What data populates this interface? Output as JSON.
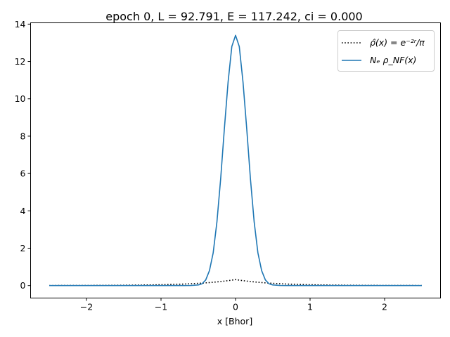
{
  "chart_data": {
    "type": "line",
    "title": "epoch 0, L = 92.791, E = 117.242, ci = 0.000",
    "xlabel": "x [Bhor]",
    "ylabel": "",
    "xlim": [
      -2.75,
      2.75
    ],
    "ylim": [
      -0.67,
      14.07
    ],
    "x_ticks": [
      -2,
      -1,
      0,
      1,
      2
    ],
    "x_tick_labels": [
      "−2",
      "−1",
      "0",
      "1",
      "2"
    ],
    "y_ticks": [
      0,
      2,
      4,
      6,
      8,
      10,
      12,
      14
    ],
    "y_tick_labels": [
      "0",
      "2",
      "4",
      "6",
      "8",
      "10",
      "12",
      "14"
    ],
    "grid": false,
    "legend_position": "top-right",
    "series": [
      {
        "name": "ρ̂(x) = e⁻²ʳ/π",
        "style": "dotted",
        "color": "#000000",
        "x": [
          -2.5,
          -2.25,
          -2.0,
          -1.75,
          -1.5,
          -1.25,
          -1.0,
          -0.9,
          -0.8,
          -0.7,
          -0.6,
          -0.5,
          -0.4,
          -0.3,
          -0.2,
          -0.1,
          0.0,
          0.1,
          0.2,
          0.3,
          0.4,
          0.5,
          0.6,
          0.7,
          0.8,
          0.9,
          1.0,
          1.25,
          1.5,
          1.75,
          2.0,
          2.25,
          2.5
        ],
        "y": [
          0.002,
          0.004,
          0.006,
          0.01,
          0.016,
          0.026,
          0.043,
          0.053,
          0.064,
          0.078,
          0.096,
          0.117,
          0.143,
          0.175,
          0.213,
          0.261,
          0.318,
          0.261,
          0.213,
          0.175,
          0.143,
          0.117,
          0.096,
          0.078,
          0.064,
          0.053,
          0.043,
          0.026,
          0.016,
          0.01,
          0.006,
          0.004,
          0.002
        ]
      },
      {
        "name": "Nₑ ρ_NF(x)",
        "style": "solid",
        "color": "#1f77b4",
        "x": [
          -2.5,
          -1.5,
          -1.0,
          -0.7,
          -0.6,
          -0.5,
          -0.45,
          -0.4,
          -0.35,
          -0.3,
          -0.25,
          -0.2,
          -0.15,
          -0.1,
          -0.05,
          0.0,
          0.05,
          0.1,
          0.15,
          0.2,
          0.25,
          0.3,
          0.35,
          0.4,
          0.45,
          0.5,
          0.6,
          0.7,
          1.0,
          1.5,
          2.5
        ],
        "y": [
          0.0,
          0.0,
          0.0,
          0.0,
          0.003,
          0.03,
          0.09,
          0.3,
          0.8,
          1.75,
          3.4,
          5.7,
          8.4,
          10.9,
          12.8,
          13.4,
          12.8,
          10.9,
          8.4,
          5.7,
          3.4,
          1.75,
          0.8,
          0.3,
          0.09,
          0.03,
          0.003,
          0.0,
          0.0,
          0.0,
          0.0
        ]
      }
    ]
  }
}
